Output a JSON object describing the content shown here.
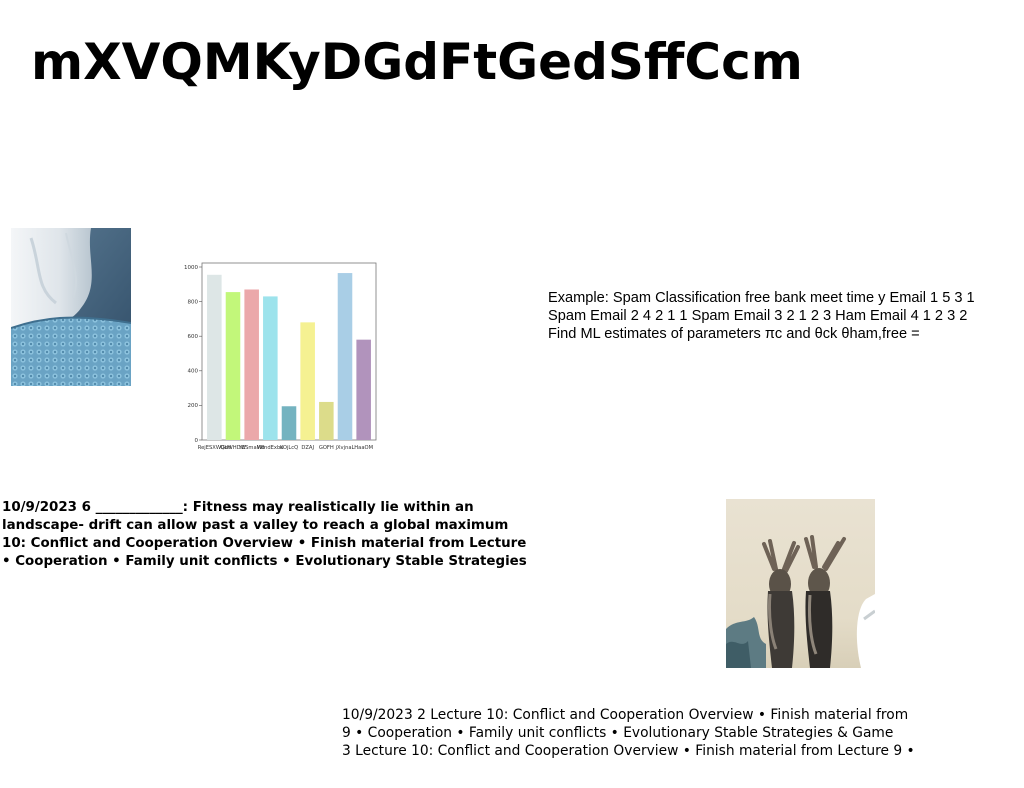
{
  "page": {
    "title": "mXVQMKyDGdFtGedSffCcm"
  },
  "images": {
    "photo_bed": "bed-linen-photo",
    "photo_people": "two-people-raising-arms-photo"
  },
  "chart_data": {
    "type": "bar",
    "categories": [
      "RejESXWGtH",
      "QuWHDW",
      "YESmaMB",
      "WmdExbe",
      "KOjLcQ",
      "DZAJ",
      "GOFH",
      "jXvjnaL",
      "HaaOM"
    ],
    "values": [
      955,
      855,
      870,
      830,
      195,
      680,
      220,
      965,
      580
    ],
    "colors": [
      "#dde6e6",
      "#c2f77a",
      "#eba8aa",
      "#9de3ec",
      "#74b3c0",
      "#f5f192",
      "#dcdc8a",
      "#a9cee6",
      "#b193bc"
    ],
    "yticks": [
      "0",
      "200",
      "400",
      "600",
      "800",
      "1000"
    ],
    "ylim": [
      0,
      1000
    ],
    "grid": false
  },
  "example": {
    "lines": [
      "Example: Spam Classification free bank meet time y Email 1 5 3 1",
      "Spam Email 2 4 2 1 1 Spam Email 3 2 1 2 3 Ham Email 4 1 2 3 2",
      "Find ML estimates of parameters πc and θck θham,free ="
    ]
  },
  "bold_block": {
    "lines": [
      "10/9/2023 6 _____________: Fitness may realistically lie within an",
      "landscape- drift can allow past a valley to reach a global maximum",
      "10: Conflict and Cooperation Overview • Finish material from Lecture",
      "• Cooperation • Family unit conflicts • Evolutionary Stable Strategies"
    ]
  },
  "lecture_block": {
    "lines": [
      "10/9/2023 2 Lecture 10: Conflict and Cooperation Overview • Finish material from",
      "9 • Cooperation • Family unit conflicts • Evolutionary Stable Strategies & Game",
      "3 Lecture 10: Conflict and Cooperation Overview • Finish material from Lecture 9 •"
    ]
  }
}
